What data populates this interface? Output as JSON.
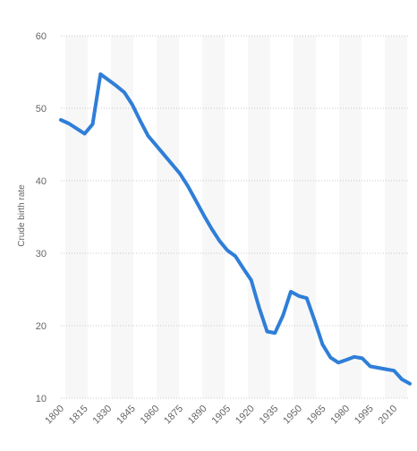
{
  "chart_data": {
    "type": "line",
    "ylabel": "Crude birth rate",
    "ylim": [
      10,
      60
    ],
    "yticks": [
      10,
      20,
      30,
      40,
      50,
      60
    ],
    "xlim": [
      1800,
      2020
    ],
    "xticks": [
      1800,
      1815,
      1830,
      1845,
      1860,
      1875,
      1890,
      1905,
      1920,
      1935,
      1950,
      1965,
      1980,
      1995,
      2010
    ],
    "grid": "horizontal dotted lines, alternating vertical bands",
    "line_color": "#2f7ed8",
    "series": [
      {
        "x": [
          1800,
          1805,
          1810,
          1815,
          1820,
          1825,
          1830,
          1835,
          1840,
          1845,
          1850,
          1855,
          1860,
          1865,
          1870,
          1875,
          1880,
          1885,
          1890,
          1895,
          1900,
          1905,
          1910,
          1915,
          1920,
          1925,
          1930,
          1935,
          1940,
          1945,
          1950,
          1955,
          1960,
          1965,
          1970,
          1975,
          1980,
          1985,
          1990,
          1995,
          2000,
          2005,
          2010,
          2015,
          2020
        ],
        "y": [
          48.4,
          47.9,
          47.2,
          46.5,
          47.8,
          54.7,
          53.9,
          53.1,
          52.2,
          50.5,
          48.3,
          46.2,
          44.9,
          43.6,
          42.3,
          41.0,
          39.3,
          37.3,
          35.3,
          33.4,
          31.7,
          30.4,
          29.6,
          27.9,
          26.3,
          22.5,
          19.2,
          19.0,
          21.4,
          24.7,
          24.1,
          23.8,
          20.7,
          17.4,
          15.6,
          14.9,
          15.3,
          15.7,
          15.5,
          14.4,
          14.2,
          14.0,
          13.8,
          12.6,
          12.0
        ]
      }
    ]
  }
}
